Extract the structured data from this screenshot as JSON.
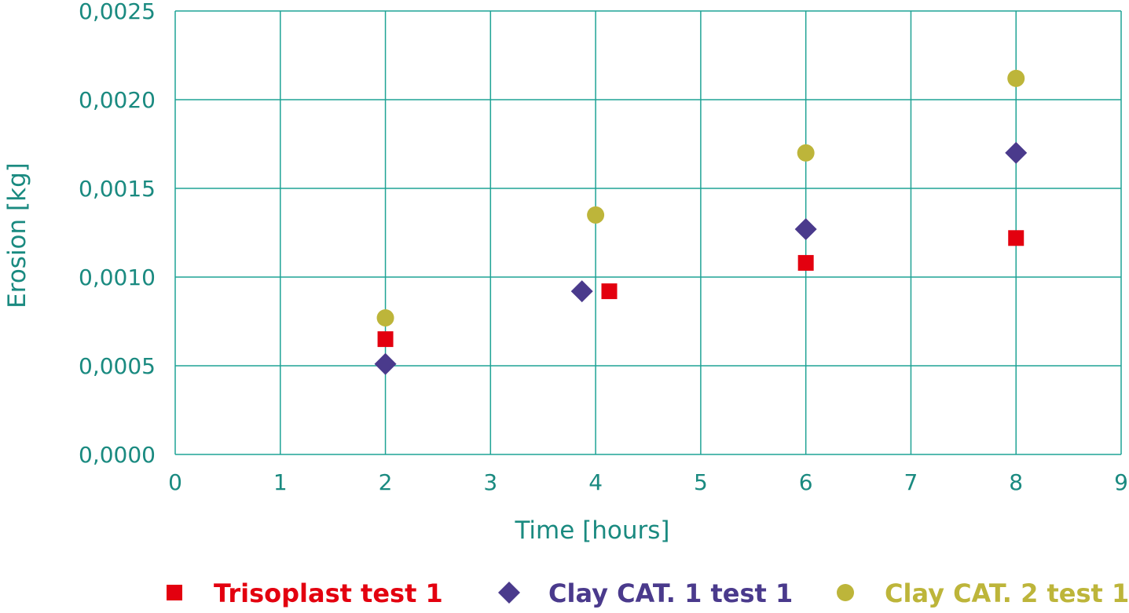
{
  "chart_data": {
    "type": "scatter",
    "title": "",
    "xlabel": "Time [hours]",
    "ylabel": "Erosion [kg]",
    "xlim": [
      0,
      9
    ],
    "ylim": [
      0,
      0.0025
    ],
    "x_ticks": [
      0,
      1,
      2,
      3,
      4,
      5,
      6,
      7,
      8,
      9
    ],
    "x_tick_labels": [
      "0",
      "1",
      "2",
      "3",
      "4",
      "5",
      "6",
      "7",
      "8",
      "9"
    ],
    "y_ticks": [
      0,
      0.0005,
      0.001,
      0.0015,
      0.002,
      0.0025
    ],
    "y_tick_labels": [
      "0,0000",
      "0,0005",
      "0,0010",
      "0,0015",
      "0,0020",
      "0,0025"
    ],
    "grid": true,
    "legend_position": "bottom",
    "series": [
      {
        "name": "Trisoplast test 1",
        "marker": "square",
        "color": "#e3000f",
        "points": [
          {
            "x": 2,
            "y": 0.00065
          },
          {
            "x": 4.13,
            "y": 0.00092
          },
          {
            "x": 6,
            "y": 0.00108
          },
          {
            "x": 8,
            "y": 0.00122
          }
        ]
      },
      {
        "name": "Clay CAT. 1 test 1",
        "marker": "diamond",
        "color": "#4a3a8c",
        "points": [
          {
            "x": 2,
            "y": 0.00051
          },
          {
            "x": 3.87,
            "y": 0.00092
          },
          {
            "x": 6,
            "y": 0.00127
          },
          {
            "x": 8,
            "y": 0.0017
          }
        ]
      },
      {
        "name": "Clay CAT. 2 test 1",
        "marker": "circle",
        "color": "#bdb53a",
        "points": [
          {
            "x": 2,
            "y": 0.00077
          },
          {
            "x": 4,
            "y": 0.00135
          },
          {
            "x": 6,
            "y": 0.0017
          },
          {
            "x": 8,
            "y": 0.00212
          }
        ]
      }
    ]
  }
}
